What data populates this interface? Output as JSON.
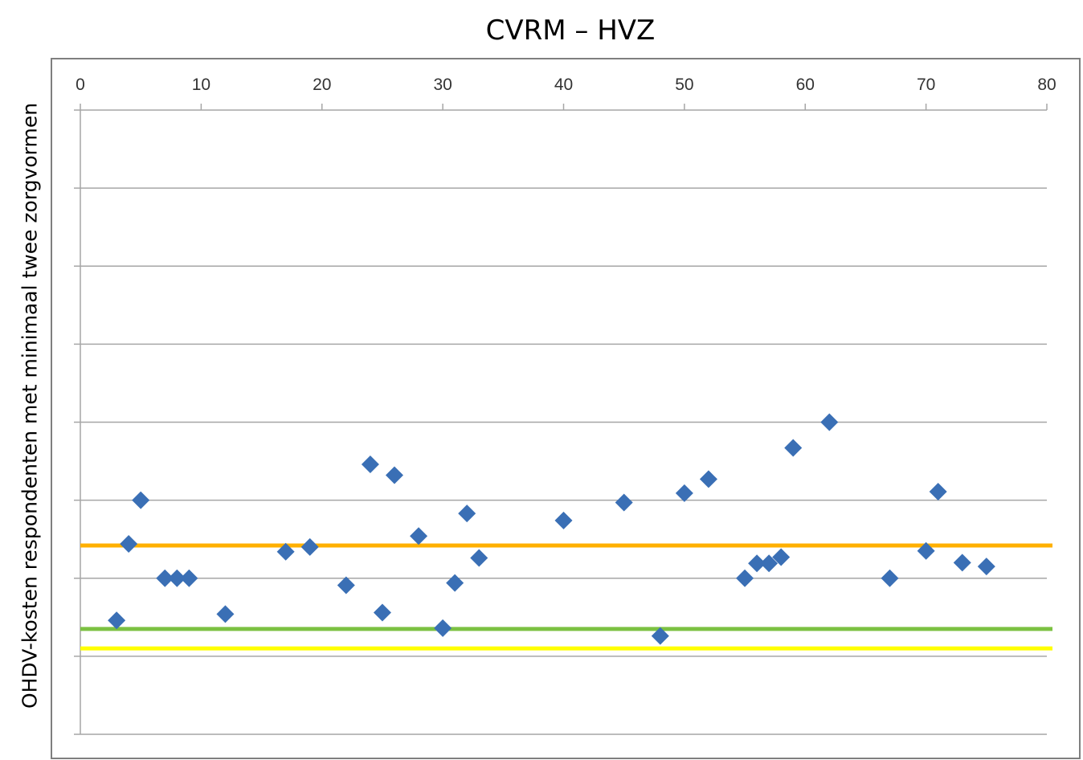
{
  "chart_data": {
    "type": "scatter",
    "title": "CVRM – HVZ",
    "xlabel": "",
    "ylabel": "OHDV-kosten respondenten met minimaal twee zorgvormen",
    "xlim": [
      0,
      80
    ],
    "x_ticks": [
      "0",
      "10",
      "20",
      "30",
      "40",
      "50",
      "60",
      "70",
      "80"
    ],
    "x_axis_position": "top",
    "ylim": [
      0,
      8
    ],
    "y_ticks_labeled": false,
    "grid": "horizontal",
    "marker": "diamond",
    "marker_color": "#3A6FB5",
    "series": [
      {
        "x": [
          3,
          4,
          5,
          7,
          8,
          9,
          12,
          17,
          19,
          22,
          24,
          25,
          26,
          28,
          30,
          31,
          32,
          33,
          40,
          45,
          48,
          50,
          52,
          55,
          56,
          57,
          58,
          59,
          62,
          67,
          70,
          71,
          73,
          75
        ],
        "y": [
          1.46,
          2.44,
          3.0,
          2.0,
          2.0,
          2.0,
          1.54,
          2.34,
          2.4,
          1.91,
          3.46,
          1.56,
          3.32,
          2.54,
          1.36,
          1.94,
          2.83,
          2.26,
          2.74,
          2.97,
          1.26,
          3.09,
          3.27,
          2.0,
          2.19,
          2.19,
          2.27,
          3.67,
          4.0,
          2.0,
          2.35,
          3.11,
          2.2,
          2.15
        ]
      }
    ],
    "reference_lines": [
      {
        "y": 2.42,
        "color": "#FFB000"
      },
      {
        "y": 1.35,
        "color": "#7CC142"
      },
      {
        "y": 1.1,
        "color": "#FFFF00"
      }
    ]
  }
}
